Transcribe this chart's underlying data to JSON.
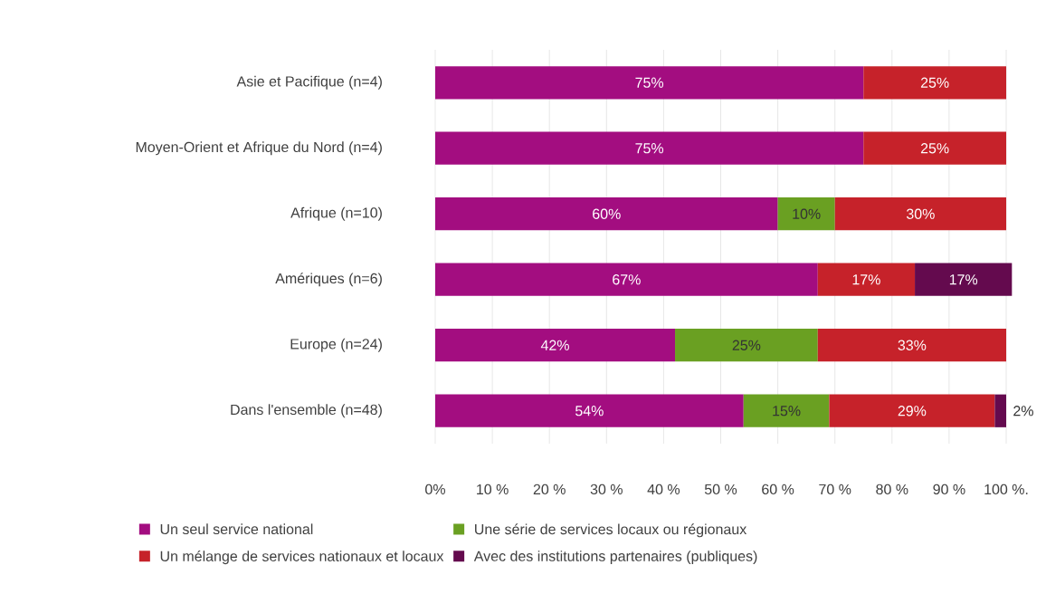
{
  "chart_data": {
    "type": "bar",
    "orientation": "horizontal",
    "stacked": true,
    "categories": [
      "Asie et Pacifique (n=4)",
      "Moyen-Orient et Afrique du Nord (n=4)",
      "Afrique (n=10)",
      "Amériques (n=6)",
      "Europe (n=24)",
      "Dans l'ensemble (n=48)"
    ],
    "series": [
      {
        "name": "Un seul service national",
        "color": "#a30d80",
        "values": [
          75,
          75,
          60,
          67,
          42,
          54
        ],
        "value_labels": [
          "75%",
          "75%",
          "60%",
          "67%",
          "42%",
          "54%"
        ]
      },
      {
        "name": "Une série de services locaux ou régionaux",
        "color": "#6aa022",
        "values": [
          null,
          null,
          10,
          null,
          25,
          15
        ],
        "value_labels": [
          null,
          null,
          "10%",
          null,
          "25%",
          "15%"
        ]
      },
      {
        "name": "Un mélange de services nationaux et locaux",
        "color": "#c6222a",
        "values": [
          25,
          25,
          30,
          17,
          33,
          29
        ],
        "value_labels": [
          "25%",
          "25%",
          "30%",
          "17%",
          "33%",
          "29%"
        ]
      },
      {
        "name": "Avec des institutions partenaires (publiques)",
        "color": "#640a4e",
        "values": [
          null,
          null,
          null,
          17,
          null,
          2
        ],
        "value_labels": [
          null,
          null,
          null,
          "17%",
          null,
          "2%"
        ]
      }
    ],
    "xlim": [
      0,
      101
    ],
    "xticks": [
      {
        "value": 0,
        "label": "0%"
      },
      {
        "value": 10,
        "label": "10 %"
      },
      {
        "value": 20,
        "label": "20 %"
      },
      {
        "value": 30,
        "label": "30 %"
      },
      {
        "value": 40,
        "label": "40 %"
      },
      {
        "value": 50,
        "label": "50 %"
      },
      {
        "value": 60,
        "label": "60 %"
      },
      {
        "value": 70,
        "label": "70 %"
      },
      {
        "value": 80,
        "label": "80 %"
      },
      {
        "value": 90,
        "label": "90 %"
      },
      {
        "value": 100,
        "label": "100 %."
      }
    ],
    "grid": "x",
    "legend": "bottom"
  }
}
